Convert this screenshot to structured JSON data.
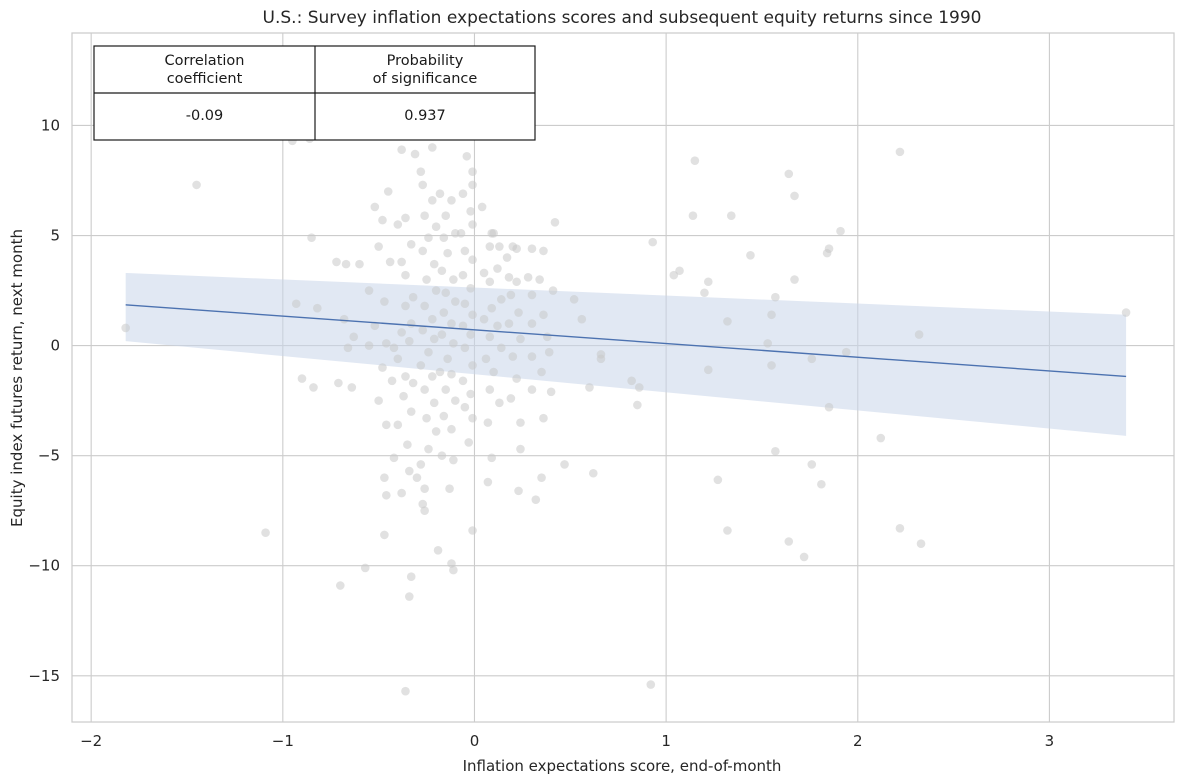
{
  "colors": {
    "point": "#c8c8c8",
    "line": "#4c72b0",
    "band": "#c9d5ea",
    "grid": "#cccccc",
    "frame": "#cccccc"
  },
  "stats_table": {
    "header_1_line_1": "Correlation",
    "header_1_line_2": "coefficient",
    "header_2_line_1": "Probability",
    "header_2_line_2": "of significance",
    "value_1": "-0.09",
    "value_2": "0.937"
  },
  "chart_data": {
    "type": "scatter",
    "title": "U.S.: Survey inflation expectations scores and subsequent equity returns since 1990",
    "xlabel": "Inflation expectations score, end-of-month",
    "ylabel": "Equity index futures return, next month",
    "xlim": [
      -2.1,
      3.65
    ],
    "ylim": [
      -17.1,
      14.2
    ],
    "xticks": [
      -2,
      -1,
      0,
      1,
      2,
      3
    ],
    "xtick_labels": [
      "−2",
      "−1",
      "0",
      "1",
      "2",
      "3"
    ],
    "yticks": [
      -15,
      -10,
      -5,
      0,
      5,
      10
    ],
    "ytick_labels": [
      "−15",
      "−10",
      "−5",
      "0",
      "5",
      "10"
    ],
    "grid": true,
    "regression": {
      "x": [
        -1.82,
        3.4
      ],
      "y": [
        1.85,
        -1.4
      ],
      "band_upper": [
        3.3,
        1.4
      ],
      "band_lower": [
        0.2,
        -4.1
      ]
    },
    "points": [
      [
        -1.82,
        0.8
      ],
      [
        -1.45,
        7.3
      ],
      [
        -0.95,
        9.3
      ],
      [
        -0.86,
        9.4
      ],
      [
        -0.85,
        4.9
      ],
      [
        -0.93,
        1.9
      ],
      [
        -0.82,
        1.7
      ],
      [
        -0.9,
        -1.5
      ],
      [
        -0.84,
        -1.9
      ],
      [
        -1.09,
        -8.5
      ],
      [
        -0.7,
        -10.9
      ],
      [
        -0.57,
        -10.1
      ],
      [
        -0.72,
        3.8
      ],
      [
        -0.67,
        3.7
      ],
      [
        -0.6,
        3.7
      ],
      [
        -0.68,
        1.2
      ],
      [
        -0.63,
        0.4
      ],
      [
        -0.66,
        -0.1
      ],
      [
        -0.71,
        -1.7
      ],
      [
        -0.64,
        -1.9
      ],
      [
        -0.52,
        6.3
      ],
      [
        -0.48,
        5.7
      ],
      [
        -0.45,
        7.0
      ],
      [
        -0.5,
        4.5
      ],
      [
        -0.44,
        3.8
      ],
      [
        -0.55,
        2.5
      ],
      [
        -0.47,
        2.0
      ],
      [
        -0.52,
        0.9
      ],
      [
        -0.46,
        0.1
      ],
      [
        -0.55,
        0.0
      ],
      [
        -0.42,
        -0.1
      ],
      [
        -0.48,
        -1.0
      ],
      [
        -0.43,
        -1.6
      ],
      [
        -0.5,
        -2.5
      ],
      [
        -0.46,
        -3.6
      ],
      [
        -0.4,
        -3.6
      ],
      [
        -0.42,
        -5.1
      ],
      [
        -0.47,
        -6.0
      ],
      [
        -0.46,
        -6.8
      ],
      [
        -0.47,
        -8.6
      ],
      [
        -0.4,
        5.5
      ],
      [
        -0.36,
        5.8
      ],
      [
        -0.33,
        4.6
      ],
      [
        -0.38,
        3.8
      ],
      [
        -0.36,
        3.2
      ],
      [
        -0.32,
        2.2
      ],
      [
        -0.36,
        1.8
      ],
      [
        -0.33,
        1.0
      ],
      [
        -0.38,
        0.6
      ],
      [
        -0.34,
        0.2
      ],
      [
        -0.4,
        -0.6
      ],
      [
        -0.36,
        -1.4
      ],
      [
        -0.32,
        -1.7
      ],
      [
        -0.37,
        -2.3
      ],
      [
        -0.33,
        -3.0
      ],
      [
        -0.35,
        -4.5
      ],
      [
        -0.34,
        -5.7
      ],
      [
        -0.3,
        -6.0
      ],
      [
        -0.38,
        -6.7
      ],
      [
        -0.33,
        -10.5
      ],
      [
        -0.34,
        -11.4
      ],
      [
        -0.36,
        -15.7
      ],
      [
        -0.38,
        8.9
      ],
      [
        -0.31,
        8.7
      ],
      [
        -0.22,
        9.0
      ],
      [
        -0.28,
        7.9
      ],
      [
        -0.27,
        7.3
      ],
      [
        -0.22,
        6.6
      ],
      [
        -0.26,
        5.9
      ],
      [
        -0.2,
        5.4
      ],
      [
        -0.24,
        4.9
      ],
      [
        -0.27,
        4.3
      ],
      [
        -0.21,
        3.7
      ],
      [
        -0.25,
        3.0
      ],
      [
        -0.2,
        2.5
      ],
      [
        -0.26,
        1.8
      ],
      [
        -0.22,
        1.2
      ],
      [
        -0.27,
        0.7
      ],
      [
        -0.21,
        0.3
      ],
      [
        -0.24,
        -0.3
      ],
      [
        -0.28,
        -0.9
      ],
      [
        -0.22,
        -1.4
      ],
      [
        -0.26,
        -2.0
      ],
      [
        -0.21,
        -2.6
      ],
      [
        -0.25,
        -3.3
      ],
      [
        -0.2,
        -3.9
      ],
      [
        -0.24,
        -4.7
      ],
      [
        -0.28,
        -5.4
      ],
      [
        -0.26,
        -6.5
      ],
      [
        -0.27,
        -7.2
      ],
      [
        -0.26,
        -7.5
      ],
      [
        -0.19,
        -9.3
      ],
      [
        -0.12,
        -9.9
      ],
      [
        -0.11,
        -10.2
      ],
      [
        -0.18,
        6.9
      ],
      [
        -0.15,
        5.9
      ],
      [
        -0.12,
        6.6
      ],
      [
        -0.16,
        4.9
      ],
      [
        -0.1,
        5.1
      ],
      [
        -0.14,
        4.2
      ],
      [
        -0.17,
        3.4
      ],
      [
        -0.11,
        3.0
      ],
      [
        -0.15,
        2.4
      ],
      [
        -0.1,
        2.0
      ],
      [
        -0.16,
        1.5
      ],
      [
        -0.12,
        1.0
      ],
      [
        -0.17,
        0.5
      ],
      [
        -0.11,
        0.1
      ],
      [
        -0.14,
        -0.6
      ],
      [
        -0.18,
        -1.2
      ],
      [
        -0.12,
        -1.3
      ],
      [
        -0.15,
        -2.0
      ],
      [
        -0.1,
        -2.5
      ],
      [
        -0.16,
        -3.2
      ],
      [
        -0.12,
        -3.8
      ],
      [
        -0.17,
        -5.0
      ],
      [
        -0.11,
        -5.2
      ],
      [
        -0.13,
        -6.5
      ],
      [
        -0.04,
        8.6
      ],
      [
        -0.01,
        7.9
      ],
      [
        -0.01,
        7.3
      ],
      [
        -0.06,
        6.9
      ],
      [
        -0.02,
        6.1
      ],
      [
        -0.07,
        5.1
      ],
      [
        -0.01,
        5.5
      ],
      [
        -0.05,
        4.3
      ],
      [
        -0.01,
        3.9
      ],
      [
        -0.06,
        3.2
      ],
      [
        -0.02,
        2.6
      ],
      [
        -0.05,
        1.9
      ],
      [
        -0.01,
        1.4
      ],
      [
        -0.06,
        0.9
      ],
      [
        -0.02,
        0.5
      ],
      [
        -0.05,
        -0.1
      ],
      [
        -0.01,
        -0.9
      ],
      [
        -0.06,
        -1.6
      ],
      [
        -0.02,
        -2.2
      ],
      [
        -0.05,
        -2.8
      ],
      [
        -0.01,
        -3.3
      ],
      [
        -0.03,
        -4.4
      ],
      [
        -0.01,
        -8.4
      ],
      [
        0.04,
        6.3
      ],
      [
        0.09,
        5.1
      ],
      [
        0.1,
        5.1
      ],
      [
        0.13,
        4.5
      ],
      [
        0.08,
        4.5
      ],
      [
        0.05,
        3.3
      ],
      [
        0.12,
        3.5
      ],
      [
        0.08,
        2.9
      ],
      [
        0.14,
        2.1
      ],
      [
        0.09,
        1.7
      ],
      [
        0.05,
        1.2
      ],
      [
        0.12,
        0.9
      ],
      [
        0.08,
        0.4
      ],
      [
        0.14,
        -0.1
      ],
      [
        0.06,
        -0.6
      ],
      [
        0.1,
        -1.2
      ],
      [
        0.08,
        -2.0
      ],
      [
        0.13,
        -2.6
      ],
      [
        0.07,
        -3.5
      ],
      [
        0.09,
        -5.1
      ],
      [
        0.07,
        -6.2
      ],
      [
        0.17,
        4.0
      ],
      [
        0.2,
        4.5
      ],
      [
        0.22,
        4.4
      ],
      [
        0.18,
        3.1
      ],
      [
        0.22,
        2.9
      ],
      [
        0.19,
        2.3
      ],
      [
        0.23,
        1.5
      ],
      [
        0.18,
        1.0
      ],
      [
        0.24,
        0.3
      ],
      [
        0.2,
        -0.5
      ],
      [
        0.22,
        -1.5
      ],
      [
        0.19,
        -2.4
      ],
      [
        0.24,
        -3.5
      ],
      [
        0.24,
        -4.7
      ],
      [
        0.23,
        -6.6
      ],
      [
        0.3,
        4.4
      ],
      [
        0.36,
        4.3
      ],
      [
        0.28,
        3.1
      ],
      [
        0.34,
        3.0
      ],
      [
        0.3,
        2.3
      ],
      [
        0.36,
        1.4
      ],
      [
        0.3,
        1.0
      ],
      [
        0.38,
        0.4
      ],
      [
        0.3,
        -0.5
      ],
      [
        0.35,
        -1.2
      ],
      [
        0.3,
        -2.0
      ],
      [
        0.36,
        -3.3
      ],
      [
        0.35,
        -6.0
      ],
      [
        0.32,
        -7.0
      ],
      [
        0.42,
        5.6
      ],
      [
        0.41,
        2.5
      ],
      [
        0.39,
        -0.3
      ],
      [
        0.4,
        -2.1
      ],
      [
        0.47,
        -5.4
      ],
      [
        0.52,
        2.1
      ],
      [
        0.56,
        1.2
      ],
      [
        0.6,
        -1.9
      ],
      [
        0.62,
        -5.8
      ],
      [
        0.66,
        -0.4
      ],
      [
        0.66,
        -0.6
      ],
      [
        0.82,
        -1.6
      ],
      [
        0.85,
        -2.7
      ],
      [
        0.86,
        -1.9
      ],
      [
        0.92,
        -15.4
      ],
      [
        0.93,
        4.7
      ],
      [
        1.04,
        3.2
      ],
      [
        1.07,
        3.4
      ],
      [
        1.14,
        5.9
      ],
      [
        1.15,
        8.4
      ],
      [
        1.2,
        2.4
      ],
      [
        1.22,
        2.9
      ],
      [
        1.22,
        -1.1
      ],
      [
        1.27,
        -6.1
      ],
      [
        1.32,
        -8.4
      ],
      [
        1.32,
        1.1
      ],
      [
        1.34,
        5.9
      ],
      [
        1.44,
        4.1
      ],
      [
        1.53,
        0.1
      ],
      [
        1.55,
        -0.9
      ],
      [
        1.55,
        1.4
      ],
      [
        1.57,
        2.2
      ],
      [
        1.57,
        -4.8
      ],
      [
        1.64,
        7.8
      ],
      [
        1.64,
        -8.9
      ],
      [
        1.67,
        6.8
      ],
      [
        1.67,
        3.0
      ],
      [
        1.72,
        -9.6
      ],
      [
        1.76,
        -0.6
      ],
      [
        1.76,
        -5.4
      ],
      [
        1.81,
        -6.3
      ],
      [
        1.84,
        4.2
      ],
      [
        1.85,
        4.4
      ],
      [
        1.85,
        -2.8
      ],
      [
        1.91,
        5.2
      ],
      [
        1.94,
        -0.3
      ],
      [
        2.12,
        -4.2
      ],
      [
        2.22,
        8.8
      ],
      [
        2.22,
        -8.3
      ],
      [
        2.32,
        0.5
      ],
      [
        2.33,
        -9.0
      ],
      [
        3.4,
        1.5
      ]
    ]
  }
}
